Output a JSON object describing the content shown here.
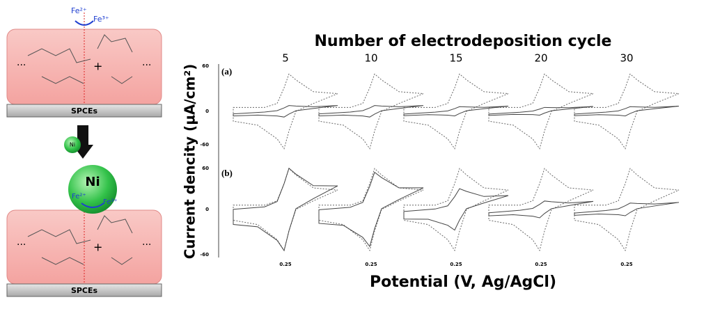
{
  "schematic": {
    "electrode": "SPCEs",
    "ion_reduced": "Fe²⁺",
    "ion_oxidized": "Fe³⁺",
    "particle": "Ni",
    "plus": "+",
    "dots": "···",
    "charge": "+"
  },
  "figure": {
    "title": "Number of electrodeposition cycle",
    "cycles": [
      "5",
      "10",
      "15",
      "20",
      "30"
    ],
    "panels": [
      "(a)",
      "(b)"
    ],
    "y_label": "Current dencity (µA/cm²)",
    "x_label": "Potential (V, Ag/AgCl)",
    "y_ticks": [
      "60",
      "0",
      "-60"
    ],
    "x_tick": "0.25"
  }
}
